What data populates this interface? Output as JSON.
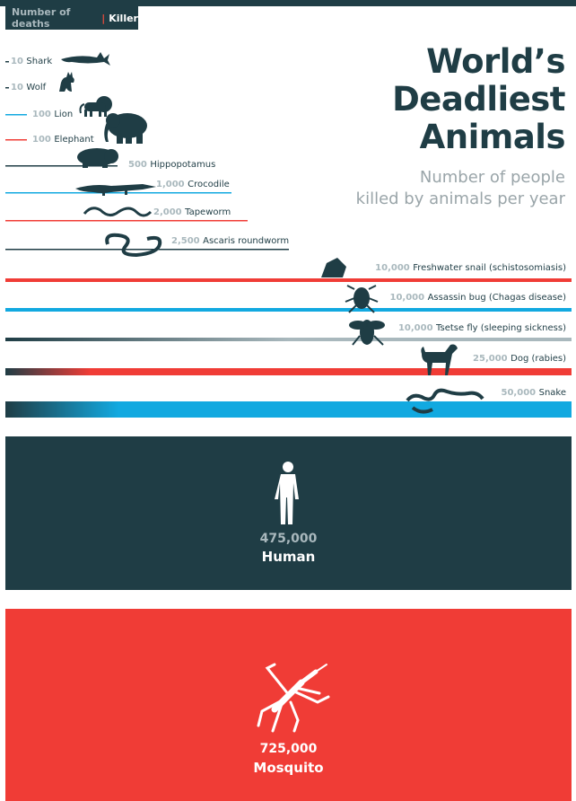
{
  "header": {
    "value_label": "Number of deaths",
    "divider": "|",
    "killer_label": "Killer"
  },
  "title": {
    "lines": [
      "World’s",
      "Deadliest",
      "Animals"
    ],
    "subtitle_lines": [
      "Number of people",
      "killed by animals per year"
    ]
  },
  "colors": {
    "dark": "#1f3d45",
    "red": "#f03c36",
    "blue": "#12a9e0",
    "gray": "#a9b8bd",
    "white": "#ffffff"
  },
  "chart_data": {
    "type": "bar",
    "title": "World’s Deadliest Animals",
    "subtitle": "Number of people killed by animals per year",
    "x_label": "Number of deaths",
    "category_label": "Killer",
    "categories": [
      "Shark",
      "Wolf",
      "Lion",
      "Elephant",
      "Hippopotamus",
      "Crocodile",
      "Tapeworm",
      "Ascaris roundworm",
      "Freshwater snail (schistosomiasis)",
      "Assassin bug (Chagas disease)",
      "Tsetse fly (sleeping sickness)",
      "Dog (rabies)",
      "Snake",
      "Human",
      "Mosquito"
    ],
    "values": [
      10,
      10,
      100,
      100,
      500,
      1000,
      2000,
      2500,
      10000,
      10000,
      10000,
      25000,
      50000,
      475000,
      725000
    ],
    "value_labels": [
      "10",
      "10",
      "100",
      "100",
      "500",
      "1,000",
      "2,000",
      "2,500",
      "10,000",
      "10,000",
      "10,000",
      "25,000",
      "50,000",
      "475,000",
      "725,000"
    ],
    "colors": [
      "#1f3d45",
      "#1f3d45",
      "#12a9e0",
      "#f03c36",
      "#1f3d45",
      "#12a9e0",
      "#f03c36",
      "#1f3d45",
      "#f03c36",
      "#12a9e0",
      "#1f3d45",
      "#f03c36",
      "#12a9e0",
      "#1f3d45",
      "#f03c36"
    ],
    "icons": [
      "shark-icon",
      "wolf-icon",
      "lion-icon",
      "elephant-icon",
      "hippopotamus-icon",
      "crocodile-icon",
      "tapeworm-icon",
      "roundworm-icon",
      "snail-icon",
      "assassin-bug-icon",
      "tsetse-fly-icon",
      "dog-icon",
      "snake-icon",
      "human-icon",
      "mosquito-icon"
    ]
  }
}
